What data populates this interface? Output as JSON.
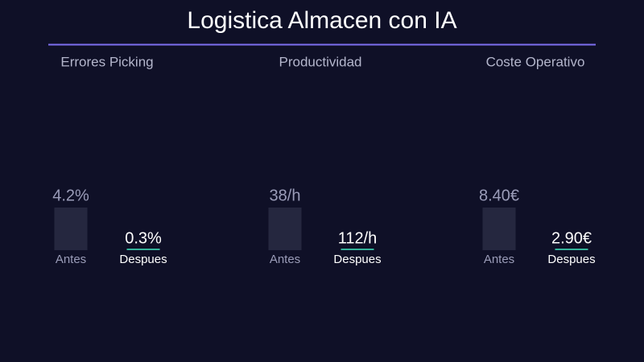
{
  "header": {
    "title": "Logistica Almacen con IA"
  },
  "panels": [
    {
      "title": "Errores Picking",
      "before": {
        "value": "4.2%",
        "label": "Antes"
      },
      "after": {
        "value": "0.3%",
        "label": "Despues"
      }
    },
    {
      "title": "Productividad",
      "before": {
        "value": "38/h",
        "label": "Antes"
      },
      "after": {
        "value": "112/h",
        "label": "Despues"
      }
    },
    {
      "title": "Coste Operativo",
      "before": {
        "value": "8.40€",
        "label": "Antes"
      },
      "after": {
        "value": "2.90€",
        "label": "Despues"
      }
    }
  ]
}
